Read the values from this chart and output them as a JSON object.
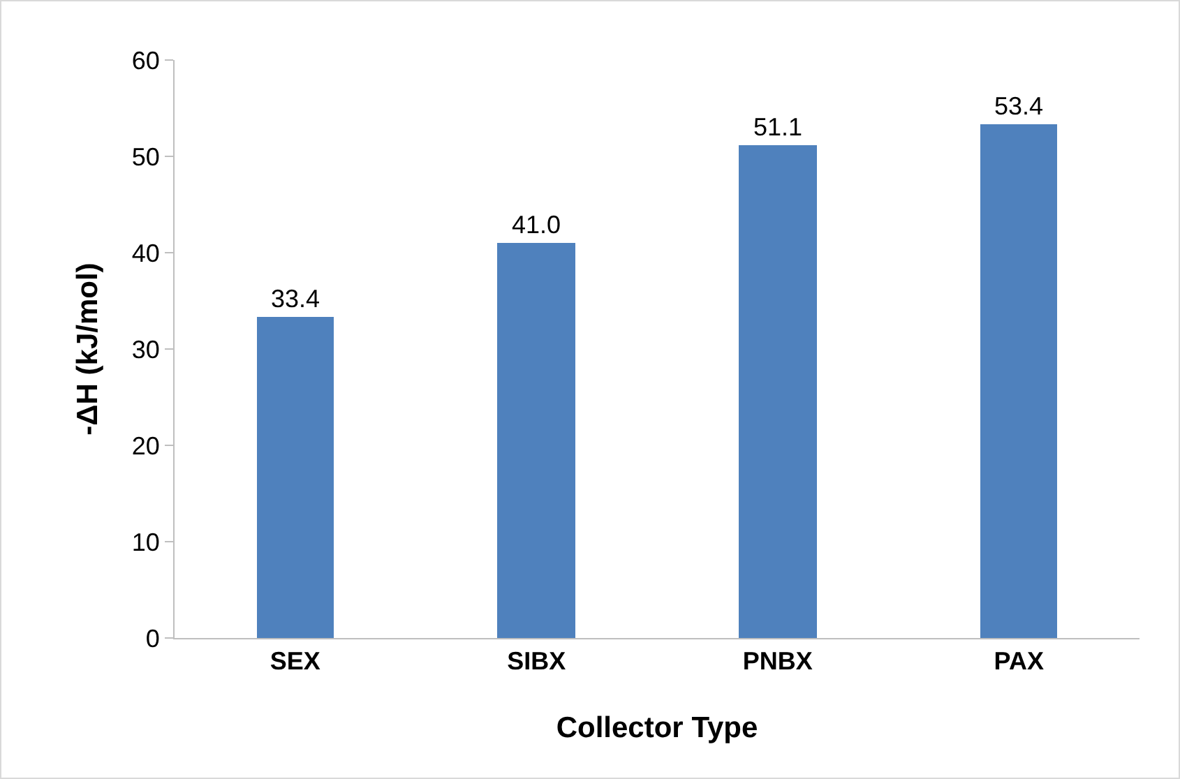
{
  "chart_data": {
    "type": "bar",
    "xlabel": "Collector Type",
    "ylabel": "-ΔH (kJ/mol)",
    "categories": [
      "SEX",
      "SIBX",
      "PNBX",
      "PAX"
    ],
    "values": [
      33.4,
      41.0,
      51.1,
      53.4
    ],
    "value_labels": [
      "33.4",
      "41.0",
      "51.1",
      "53.4"
    ],
    "color": "#4f81bd",
    "ylim": [
      0,
      60
    ],
    "yticks": [
      0,
      10,
      20,
      30,
      40,
      50,
      60
    ],
    "grid": false,
    "legend": false
  }
}
